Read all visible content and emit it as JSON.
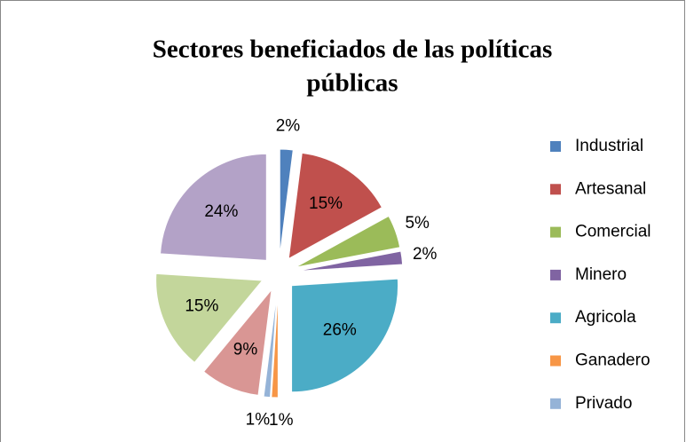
{
  "chart_data": {
    "type": "pie",
    "title": [
      "Sectores beneficiados de las políticas",
      "públicas"
    ],
    "categories": [
      "Industrial",
      "Artesanal",
      "Comercial",
      "Minero",
      "Agricola",
      "Ganadero",
      "Privado",
      null,
      null,
      null
    ],
    "values": [
      2,
      15,
      5,
      2,
      26,
      1,
      1,
      9,
      15,
      24
    ],
    "value_labels": [
      "2%",
      "15%",
      "5%",
      "2%",
      "26%",
      "1%",
      "1%",
      "9%",
      "15%",
      "24%"
    ],
    "colors": [
      "#4f81bd",
      "#c0504d",
      "#9bbb59",
      "#8064a2",
      "#4bacc6",
      "#f79646",
      "#95b3d7",
      "#d99694",
      "#c3d69b",
      "#b3a2c7"
    ],
    "legend": "right"
  }
}
